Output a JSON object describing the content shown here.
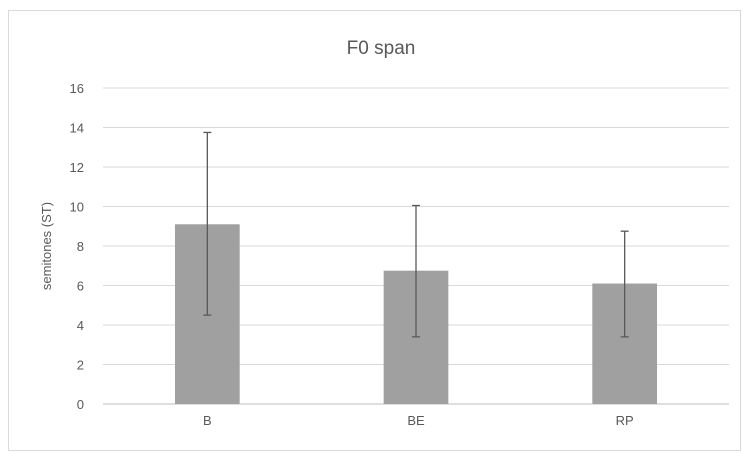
{
  "chart_data": {
    "type": "bar",
    "title": "F0 span",
    "xlabel": "",
    "ylabel": "semitones (ST)",
    "ylim": [
      0,
      16
    ],
    "yticks": [
      0,
      2,
      4,
      6,
      8,
      10,
      12,
      14,
      16
    ],
    "categories": [
      "B",
      "BE",
      "RP"
    ],
    "series": [
      {
        "values": [
          9.1,
          6.75,
          6.1
        ],
        "error_low": [
          4.5,
          3.4,
          3.4
        ],
        "error_high": [
          13.75,
          10.05,
          8.75
        ]
      }
    ],
    "grid": true,
    "legend": false,
    "colors": {
      "bar": "#a0a0a0",
      "error": "#595959",
      "grid": "#d9d9d9",
      "axis": "#bfbfbf",
      "text": "#595959"
    }
  }
}
